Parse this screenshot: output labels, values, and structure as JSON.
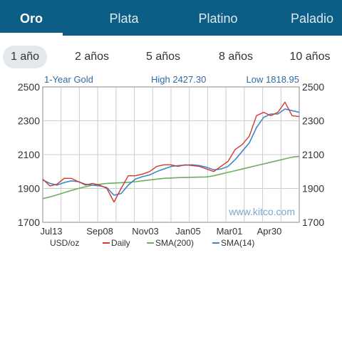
{
  "tabs": {
    "items": [
      {
        "label": "Oro",
        "active": true
      },
      {
        "label": "Plata",
        "active": false
      },
      {
        "label": "Platino",
        "active": false
      },
      {
        "label": "Paladio",
        "active": false
      }
    ]
  },
  "periods": {
    "items": [
      {
        "label": "1 año",
        "active": true
      },
      {
        "label": "2 años",
        "active": false
      },
      {
        "label": "5 años",
        "active": false
      },
      {
        "label": "8 años",
        "active": false
      },
      {
        "label": "10 años",
        "active": false
      }
    ]
  },
  "colors": {
    "tab_bar": "#0d5e86",
    "daily": "#d13a2f",
    "sma200": "#6bb05c",
    "sma14": "#3f87c9",
    "watermark": "#7aa6cf",
    "header_text": "#2f6aa3"
  },
  "chart_data": {
    "type": "line",
    "title": "1-Year Gold",
    "high_label": "High 2427.30",
    "low_label": "Low 1818.95",
    "watermark": "www.kitco.com",
    "unit_label": "USD/oz",
    "x_ticks": [
      "Jul13",
      "Sep08",
      "Nov03",
      "Jan05",
      "Mar01",
      "Apr30"
    ],
    "y_ticks": [
      2500,
      2300,
      2100,
      1900,
      1700
    ],
    "ylim": [
      1700,
      2500
    ],
    "grid": true,
    "legend": [
      {
        "label": "Daily",
        "key": "daily"
      },
      {
        "label": "SMA(200)",
        "key": "sma200"
      },
      {
        "label": "SMA(14)",
        "key": "sma14"
      }
    ],
    "x": [
      0,
      10,
      20,
      30,
      40,
      50,
      60,
      70,
      80,
      90,
      100,
      110,
      120,
      130,
      140,
      150,
      160,
      170,
      180,
      190,
      200,
      210,
      220,
      230,
      240,
      250,
      260,
      270,
      280,
      290,
      300,
      310,
      320,
      330,
      340,
      350,
      360
    ],
    "series": [
      {
        "key": "daily",
        "values": [
          1955,
          1915,
          1925,
          1960,
          1960,
          1940,
          1920,
          1930,
          1920,
          1900,
          1820,
          1900,
          1975,
          1975,
          1985,
          2000,
          2030,
          2040,
          2040,
          2030,
          2040,
          2035,
          2030,
          2015,
          2000,
          2030,
          2060,
          2130,
          2160,
          2210,
          2330,
          2350,
          2330,
          2350,
          2410,
          2330,
          2325
        ]
      },
      {
        "key": "sma200",
        "values": [
          1840,
          1850,
          1862,
          1875,
          1888,
          1900,
          1910,
          1920,
          1925,
          1930,
          1932,
          1934,
          1936,
          1940,
          1945,
          1950,
          1955,
          1960,
          1962,
          1964,
          1965,
          1966,
          1967,
          1968,
          1975,
          1985,
          1995,
          2005,
          2015,
          2025,
          2035,
          2045,
          2055,
          2065,
          2075,
          2085,
          2090
        ]
      },
      {
        "key": "sma14",
        "values": [
          1950,
          1930,
          1920,
          1935,
          1945,
          1940,
          1925,
          1920,
          1915,
          1905,
          1860,
          1870,
          1920,
          1955,
          1970,
          1980,
          2000,
          2015,
          2030,
          2035,
          2038,
          2040,
          2035,
          2025,
          2010,
          2015,
          2030,
          2070,
          2120,
          2170,
          2260,
          2320,
          2340,
          2340,
          2370,
          2360,
          2350
        ]
      }
    ]
  }
}
